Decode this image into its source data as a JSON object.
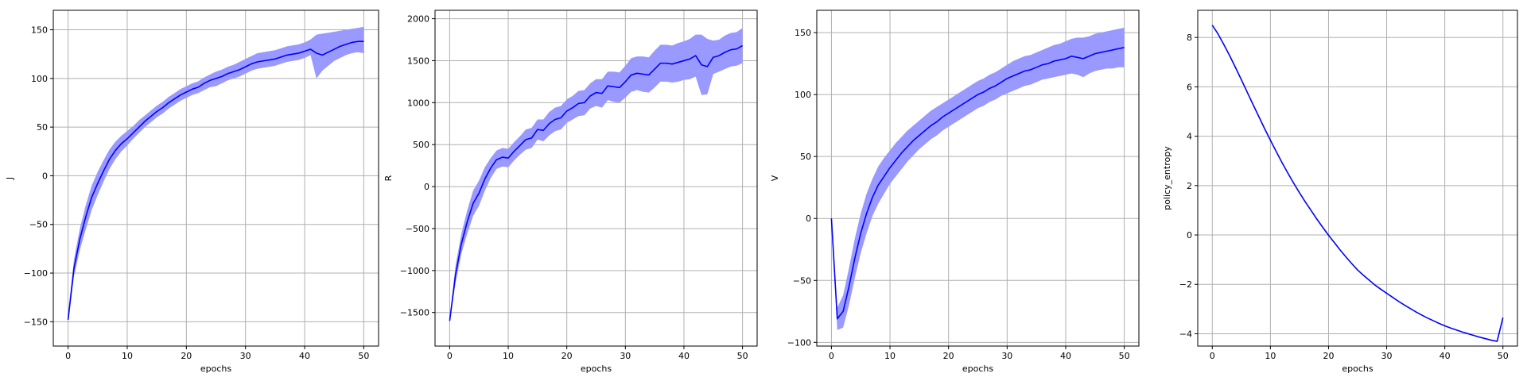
{
  "figure": {
    "colors": {
      "line": "#0000ff",
      "band": "#9999ff",
      "grid": "#b0b0b0",
      "axes": "#000000"
    }
  },
  "chart_data": [
    {
      "type": "line",
      "xlabel": "epochs",
      "ylabel": "J",
      "xlim": [
        -2.5,
        52.5
      ],
      "ylim": [
        -175,
        170
      ],
      "xticks": [
        0,
        10,
        20,
        30,
        40,
        50
      ],
      "yticks": [
        -150,
        -100,
        -50,
        0,
        50,
        100,
        150
      ],
      "xtick_labels": [
        "0",
        "10",
        "20",
        "30",
        "40",
        "50"
      ],
      "ytick_labels": [
        "−150",
        "−100",
        "−50",
        "0",
        "50",
        "100",
        "150"
      ],
      "grid": true,
      "series": [
        {
          "x": [
            0,
            1,
            2,
            3,
            4,
            5,
            6,
            7,
            8,
            9,
            10,
            11,
            12,
            13,
            14,
            15,
            16,
            17,
            18,
            19,
            20,
            21,
            22,
            23,
            24,
            25,
            26,
            27,
            28,
            29,
            30,
            31,
            32,
            33,
            34,
            35,
            36,
            37,
            38,
            39,
            40,
            41,
            42,
            43,
            44,
            45,
            46,
            47,
            48,
            49,
            50
          ],
          "mean": [
            -148,
            -95,
            -65,
            -42,
            -22,
            -8,
            5,
            17,
            26,
            33,
            38,
            44,
            50,
            56,
            61,
            66,
            70,
            75,
            79,
            83,
            86,
            89,
            91,
            95,
            98,
            100,
            102,
            105,
            107,
            109,
            112,
            115,
            117,
            118,
            119,
            120,
            122,
            124,
            125,
            126,
            128,
            130,
            126,
            124,
            127,
            130,
            133,
            135,
            137,
            138,
            138
          ],
          "lower": [
            -150,
            -103,
            -76,
            -55,
            -35,
            -20,
            -6,
            7,
            17,
            25,
            31,
            38,
            44,
            50,
            55,
            60,
            64,
            69,
            73,
            77,
            80,
            83,
            85,
            88,
            91,
            92,
            95,
            98,
            100,
            102,
            105,
            108,
            110,
            111,
            112,
            113,
            115,
            117,
            118,
            119,
            121,
            124,
            100,
            108,
            113,
            118,
            121,
            124,
            126,
            127,
            126
          ],
          "upper": [
            -142,
            -86,
            -54,
            -30,
            -10,
            4,
            16,
            27,
            35,
            41,
            46,
            51,
            57,
            62,
            67,
            72,
            76,
            81,
            85,
            89,
            92,
            95,
            97,
            101,
            104,
            107,
            109,
            112,
            114,
            117,
            120,
            123,
            126,
            127,
            128,
            129,
            131,
            133,
            134,
            135,
            137,
            140,
            145,
            146,
            147,
            148,
            149,
            150,
            151,
            152,
            153
          ]
        }
      ]
    },
    {
      "type": "line",
      "xlabel": "epochs",
      "ylabel": "R",
      "xlim": [
        -2.5,
        52.5
      ],
      "ylim": [
        -1900,
        2100
      ],
      "xticks": [
        0,
        10,
        20,
        30,
        40,
        50
      ],
      "yticks": [
        -1500,
        -1000,
        -500,
        0,
        500,
        1000,
        1500,
        2000
      ],
      "xtick_labels": [
        "0",
        "10",
        "20",
        "30",
        "40",
        "50"
      ],
      "ytick_labels": [
        "−1500",
        "−1000",
        "−500",
        "0",
        "500",
        "1000",
        "1500",
        "2000"
      ],
      "grid": true,
      "series": [
        {
          "x": [
            0,
            1,
            2,
            3,
            4,
            5,
            6,
            7,
            8,
            9,
            10,
            11,
            12,
            13,
            14,
            15,
            16,
            17,
            18,
            19,
            20,
            21,
            22,
            23,
            24,
            25,
            26,
            27,
            28,
            29,
            30,
            31,
            32,
            33,
            34,
            35,
            36,
            37,
            38,
            39,
            40,
            41,
            42,
            43,
            44,
            45,
            46,
            47,
            48,
            49,
            50
          ],
          "mean": [
            -1600,
            -1050,
            -680,
            -420,
            -200,
            -80,
            90,
            220,
            320,
            350,
            340,
            420,
            490,
            560,
            580,
            680,
            670,
            750,
            800,
            820,
            900,
            940,
            990,
            1000,
            1080,
            1120,
            1110,
            1200,
            1190,
            1180,
            1250,
            1330,
            1350,
            1340,
            1330,
            1400,
            1470,
            1470,
            1460,
            1480,
            1500,
            1520,
            1560,
            1450,
            1430,
            1540,
            1560,
            1600,
            1630,
            1640,
            1680
          ],
          "lower": [
            -1620,
            -1150,
            -800,
            -560,
            -350,
            -230,
            -50,
            100,
            210,
            240,
            230,
            310,
            380,
            440,
            460,
            560,
            540,
            610,
            660,
            680,
            760,
            800,
            840,
            850,
            930,
            960,
            940,
            1030,
            1010,
            1000,
            1060,
            1130,
            1150,
            1130,
            1120,
            1180,
            1250,
            1250,
            1240,
            1250,
            1270,
            1280,
            1310,
            1090,
            1100,
            1340,
            1370,
            1400,
            1430,
            1440,
            1470
          ],
          "upper": [
            -1580,
            -940,
            -560,
            -280,
            -50,
            70,
            230,
            340,
            430,
            460,
            450,
            530,
            600,
            680,
            700,
            800,
            800,
            890,
            940,
            960,
            1040,
            1080,
            1140,
            1150,
            1230,
            1280,
            1280,
            1370,
            1370,
            1360,
            1440,
            1530,
            1550,
            1550,
            1540,
            1620,
            1690,
            1690,
            1680,
            1710,
            1730,
            1760,
            1810,
            1810,
            1760,
            1740,
            1750,
            1800,
            1830,
            1840,
            1890
          ]
        }
      ]
    },
    {
      "type": "line",
      "xlabel": "epochs",
      "ylabel": "V",
      "xlim": [
        -2.5,
        52.5
      ],
      "ylim": [
        -103,
        168
      ],
      "xticks": [
        0,
        10,
        20,
        30,
        40,
        50
      ],
      "yticks": [
        -100,
        -50,
        0,
        50,
        100,
        150
      ],
      "xtick_labels": [
        "0",
        "10",
        "20",
        "30",
        "40",
        "50"
      ],
      "ytick_labels": [
        "−100",
        "−50",
        "0",
        "50",
        "100",
        "150"
      ],
      "grid": true,
      "series": [
        {
          "x": [
            0,
            1,
            2,
            3,
            4,
            5,
            6,
            7,
            8,
            9,
            10,
            11,
            12,
            13,
            14,
            15,
            16,
            17,
            18,
            19,
            20,
            21,
            22,
            23,
            24,
            25,
            26,
            27,
            28,
            29,
            30,
            31,
            32,
            33,
            34,
            35,
            36,
            37,
            38,
            39,
            40,
            41,
            42,
            43,
            44,
            45,
            46,
            47,
            48,
            49,
            50
          ],
          "mean": [
            0,
            -81,
            -75,
            -55,
            -32,
            -12,
            4,
            17,
            27,
            34,
            41,
            47,
            53,
            58,
            63,
            67,
            71,
            75,
            78,
            82,
            85,
            88,
            91,
            94,
            97,
            100,
            102,
            105,
            107,
            110,
            113,
            115,
            117,
            119,
            120,
            122,
            124,
            125,
            127,
            128,
            129,
            131,
            130,
            129,
            131,
            133,
            134,
            135,
            136,
            137,
            138
          ],
          "lower": [
            0,
            -90,
            -88,
            -70,
            -48,
            -28,
            -12,
            2,
            12,
            20,
            28,
            34,
            40,
            46,
            51,
            56,
            60,
            64,
            67,
            71,
            74,
            77,
            80,
            83,
            86,
            89,
            91,
            94,
            96,
            99,
            101,
            103,
            105,
            107,
            108,
            110,
            112,
            113,
            114,
            115,
            116,
            117,
            116,
            114,
            117,
            119,
            120,
            121,
            121,
            122,
            122
          ],
          "upper": [
            0,
            -72,
            -62,
            -40,
            -16,
            4,
            20,
            32,
            42,
            49,
            55,
            61,
            66,
            71,
            75,
            79,
            83,
            87,
            90,
            93,
            96,
            99,
            102,
            105,
            108,
            111,
            113,
            116,
            118,
            121,
            124,
            127,
            129,
            131,
            132,
            134,
            136,
            138,
            140,
            141,
            143,
            145,
            146,
            146,
            147,
            149,
            150,
            151,
            152,
            153,
            154
          ]
        }
      ]
    },
    {
      "type": "line",
      "xlabel": "epochs",
      "ylabel": "policy_entropy",
      "xlim": [
        -2.5,
        52.5
      ],
      "ylim": [
        -4.5,
        9.1
      ],
      "xticks": [
        0,
        10,
        20,
        30,
        40,
        50
      ],
      "yticks": [
        -4,
        -2,
        0,
        2,
        4,
        6,
        8
      ],
      "xtick_labels": [
        "0",
        "10",
        "20",
        "30",
        "40",
        "50"
      ],
      "ytick_labels": [
        "−4",
        "−2",
        "0",
        "2",
        "4",
        "6",
        "8"
      ],
      "grid": true,
      "series": [
        {
          "x": [
            0,
            1,
            2,
            3,
            4,
            5,
            6,
            7,
            8,
            9,
            10,
            11,
            12,
            13,
            14,
            15,
            16,
            17,
            18,
            19,
            20,
            21,
            22,
            23,
            24,
            25,
            26,
            27,
            28,
            29,
            30,
            31,
            32,
            33,
            34,
            35,
            36,
            37,
            38,
            39,
            40,
            41,
            42,
            43,
            44,
            45,
            46,
            47,
            48,
            49,
            50
          ],
          "mean": [
            8.5,
            8.14,
            7.71,
            7.26,
            6.78,
            6.29,
            5.79,
            5.29,
            4.8,
            4.31,
            3.84,
            3.38,
            2.93,
            2.51,
            2.1,
            1.71,
            1.34,
            0.99,
            0.64,
            0.31,
            -0.01,
            -0.31,
            -0.61,
            -0.89,
            -1.16,
            -1.42,
            -1.63,
            -1.83,
            -2.03,
            -2.2,
            -2.36,
            -2.52,
            -2.68,
            -2.83,
            -2.97,
            -3.11,
            -3.24,
            -3.36,
            -3.47,
            -3.58,
            -3.68,
            -3.77,
            -3.85,
            -3.93,
            -4.0,
            -4.07,
            -4.14,
            -4.2,
            -4.26,
            -4.31,
            -3.35
          ]
        }
      ]
    }
  ]
}
